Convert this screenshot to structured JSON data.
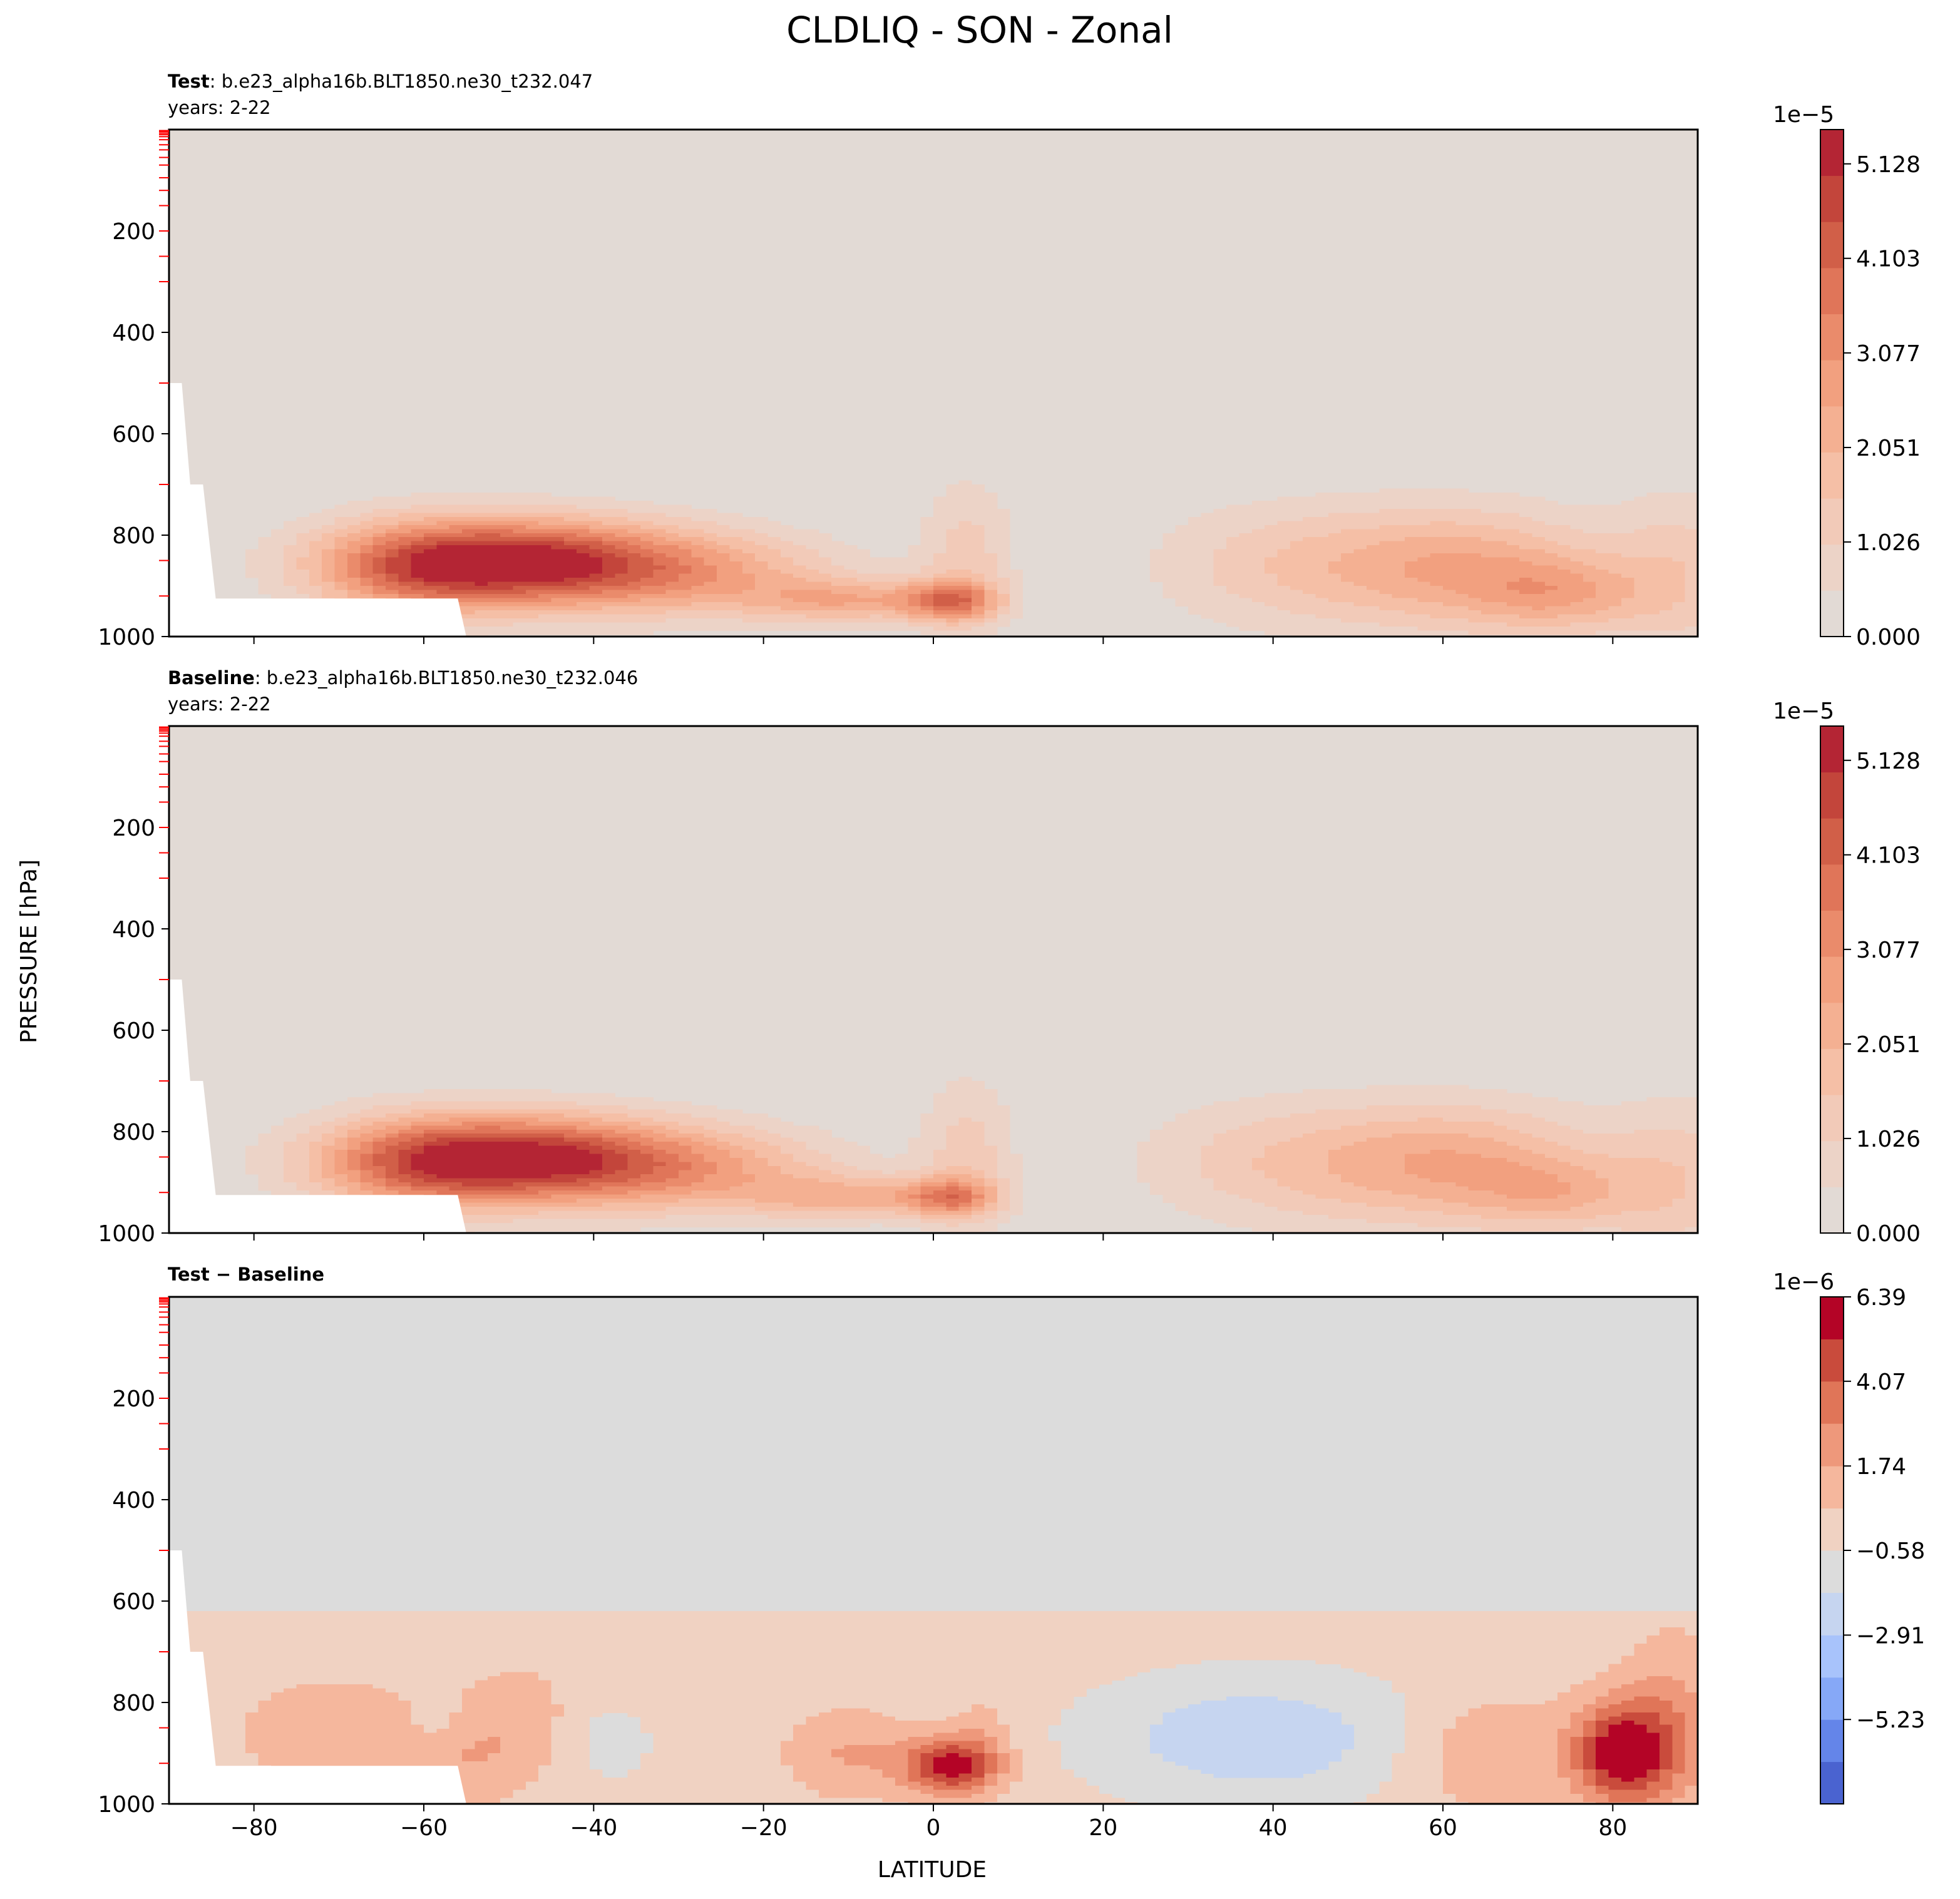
{
  "figure": {
    "title": "CLDLIQ - SON - Zonal",
    "ylabel": "PRESSURE [hPa]",
    "xlabel": "LATITUDE"
  },
  "colors": {
    "background_warm": "#e2dad5",
    "background_diff": "#dcdcdc",
    "missing": "#ffffff",
    "top_marker": "#ff0000"
  },
  "chart_data": [
    {
      "type": "contourf",
      "panel": "test",
      "header_bold": "Test",
      "header_text": ": b.e23_alpha16b.BLT1850.ne30_t232.047",
      "years_label": "years: 2-22",
      "x": "latitude",
      "xlim": [
        -90,
        90
      ],
      "y": "pressure (hPa, inverted)",
      "ylim": [
        1000,
        0
      ],
      "yticks": [
        200,
        400,
        600,
        800,
        1000
      ],
      "show_x_ticklabels": false,
      "colorbar": {
        "multiplier": "1e−5",
        "ticks": [
          "0.000",
          "1.026",
          "2.051",
          "3.077",
          "4.103",
          "5.128"
        ],
        "tick_values": [
          0,
          1.026,
          2.051,
          3.077,
          4.103,
          5.128
        ],
        "vmin": 0,
        "vmax": 5.5,
        "bands": [
          "#e2dad5",
          "#ecd3c7",
          "#f2cab8",
          "#f5bfa6",
          "#f4b092",
          "#f2a07f",
          "#ea8b6b",
          "#e07559",
          "#d15f48",
          "#c3453b",
          "#b42534"
        ]
      },
      "blobs": [
        {
          "lat": -49,
          "p": 855,
          "slat": 14,
          "sp": 62,
          "amp": 5.3
        },
        {
          "lat": -62,
          "p": 870,
          "slat": 8,
          "sp": 70,
          "amp": 1.6
        },
        {
          "lat": -26,
          "p": 880,
          "slat": 12,
          "sp": 60,
          "amp": 1.7
        },
        {
          "lat": -10,
          "p": 930,
          "slat": 8,
          "sp": 30,
          "amp": 2.0
        },
        {
          "lat": 2,
          "p": 930,
          "slat": 4,
          "sp": 28,
          "amp": 3.0
        },
        {
          "lat": 4,
          "p": 840,
          "slat": 4,
          "sp": 110,
          "amp": 1.2
        },
        {
          "lat": 40,
          "p": 860,
          "slat": 11,
          "sp": 90,
          "amp": 1.1
        },
        {
          "lat": 62,
          "p": 865,
          "slat": 12,
          "sp": 85,
          "amp": 2.4
        },
        {
          "lat": 74,
          "p": 920,
          "slat": 7,
          "sp": 50,
          "amp": 1.6
        },
        {
          "lat": 88,
          "p": 880,
          "slat": 6,
          "sp": 120,
          "amp": 1.2
        }
      ]
    },
    {
      "type": "contourf",
      "panel": "baseline",
      "header_bold": "Baseline",
      "header_text": ": b.e23_alpha16b.BLT1850.ne30_t232.046",
      "years_label": "years: 2-22",
      "x": "latitude",
      "xlim": [
        -90,
        90
      ],
      "y": "pressure (hPa, inverted)",
      "ylim": [
        1000,
        0
      ],
      "yticks": [
        200,
        400,
        600,
        800,
        1000
      ],
      "show_x_ticklabels": false,
      "colorbar": {
        "multiplier": "1e−5",
        "ticks": [
          "0.000",
          "1.026",
          "2.051",
          "3.077",
          "4.103",
          "5.128"
        ],
        "tick_values": [
          0,
          1.026,
          2.051,
          3.077,
          4.103,
          5.128
        ],
        "vmin": 0,
        "vmax": 5.5,
        "bands": [
          "#e2dad5",
          "#ecd3c7",
          "#f2cab8",
          "#f5bfa6",
          "#f4b092",
          "#f2a07f",
          "#ea8b6b",
          "#e07559",
          "#d15f48",
          "#c3453b",
          "#b42534"
        ]
      },
      "blobs": [
        {
          "lat": -49,
          "p": 855,
          "slat": 14,
          "sp": 62,
          "amp": 5.3
        },
        {
          "lat": -62,
          "p": 870,
          "slat": 8,
          "sp": 70,
          "amp": 1.5
        },
        {
          "lat": -26,
          "p": 880,
          "slat": 12,
          "sp": 60,
          "amp": 1.7
        },
        {
          "lat": -10,
          "p": 930,
          "slat": 8,
          "sp": 30,
          "amp": 1.8
        },
        {
          "lat": 2,
          "p": 930,
          "slat": 4,
          "sp": 28,
          "amp": 2.6
        },
        {
          "lat": 4,
          "p": 840,
          "slat": 4,
          "sp": 110,
          "amp": 1.2
        },
        {
          "lat": 40,
          "p": 860,
          "slat": 12,
          "sp": 90,
          "amp": 1.2
        },
        {
          "lat": 62,
          "p": 865,
          "slat": 12,
          "sp": 85,
          "amp": 2.3
        },
        {
          "lat": 74,
          "p": 925,
          "slat": 7,
          "sp": 50,
          "amp": 1.3
        },
        {
          "lat": 88,
          "p": 900,
          "slat": 6,
          "sp": 120,
          "amp": 1.2
        }
      ]
    },
    {
      "type": "contourf",
      "panel": "difference",
      "header_bold": "Test",
      "header_text": " − Baseline",
      "years_label": "",
      "x": "latitude",
      "xlim": [
        -90,
        90
      ],
      "y": "pressure (hPa, inverted)",
      "ylim": [
        1000,
        0
      ],
      "yticks": [
        200,
        400,
        600,
        800,
        1000
      ],
      "xticks": [
        -80,
        -60,
        -40,
        -20,
        0,
        20,
        40,
        60,
        80
      ],
      "show_x_ticklabels": true,
      "colorbar": {
        "multiplier": "1e−6",
        "ticks": [
          "−5.23",
          "−2.91",
          "−0.58",
          "1.74",
          "4.07",
          "6.39"
        ],
        "tick_values": [
          -5.23,
          -2.91,
          -0.58,
          1.74,
          4.07,
          6.39
        ],
        "vmin": -7.55,
        "vmax": 6.39,
        "levels": [
          -7.55,
          -6.39,
          -5.23,
          -4.07,
          -2.91,
          -1.74,
          -0.58,
          0.58,
          1.74,
          2.91,
          4.07,
          5.23,
          6.39
        ],
        "bands": [
          "#4a63d0",
          "#6485e9",
          "#86a8f7",
          "#a8c3fb",
          "#c6d5f0",
          "#dcdcdc",
          "#f0d2c2",
          "#f5b79d",
          "#ee987b",
          "#e07558",
          "#c94b3c",
          "#b40426"
        ]
      },
      "blobs": [
        {
          "lat": -70,
          "p": 860,
          "slat": 8,
          "sp": 70,
          "amp": 1.6
        },
        {
          "lat": -55,
          "p": 900,
          "slat": 4,
          "sp": 80,
          "amp": 1.5
        },
        {
          "lat": -48,
          "p": 840,
          "slat": 4,
          "sp": 80,
          "amp": 1.2
        },
        {
          "lat": -58,
          "p": 840,
          "slat": 3,
          "sp": 40,
          "amp": -1.0
        },
        {
          "lat": -38,
          "p": 880,
          "slat": 4,
          "sp": 60,
          "amp": -1.1
        },
        {
          "lat": -10,
          "p": 900,
          "slat": 5,
          "sp": 60,
          "amp": 1.8
        },
        {
          "lat": 2,
          "p": 925,
          "slat": 4,
          "sp": 40,
          "amp": 6.0
        },
        {
          "lat": 6,
          "p": 860,
          "slat": 2.5,
          "sp": 60,
          "amp": 1.0
        },
        {
          "lat": 38,
          "p": 870,
          "slat": 14,
          "sp": 90,
          "amp": -2.6
        },
        {
          "lat": 65,
          "p": 900,
          "slat": 7,
          "sp": 80,
          "amp": 1.8
        },
        {
          "lat": 81,
          "p": 900,
          "slat": 4,
          "sp": 70,
          "amp": 6.3
        },
        {
          "lat": 87,
          "p": 850,
          "slat": 4,
          "sp": 120,
          "amp": 2.2
        }
      ]
    }
  ]
}
